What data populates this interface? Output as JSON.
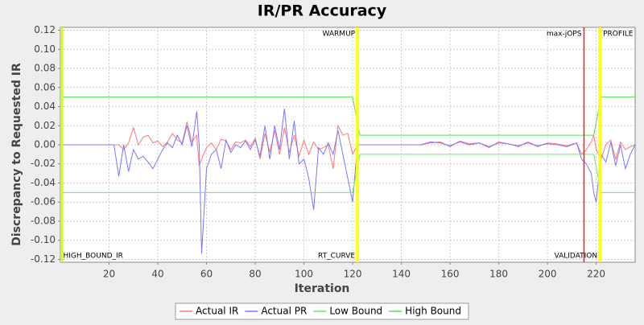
{
  "chart_data": {
    "type": "line",
    "title": "IR/PR Accuracy",
    "x_label": "Iteration",
    "y_label": "Discrepancy to Requested IR",
    "xlim": [
      0,
      236
    ],
    "ylim": [
      -0.123,
      0.123
    ],
    "xticks": [
      20,
      40,
      60,
      80,
      100,
      120,
      140,
      160,
      180,
      200,
      220
    ],
    "yticks": [
      0.12,
      {
        "value": 0.1,
        "label": "0.10"
      },
      0.08,
      0.06,
      0.04,
      0.02,
      {
        "value": 0,
        "label": "0.00"
      },
      -0.02,
      -0.04,
      -0.06,
      -0.08,
      {
        "value": -0.1,
        "label": "-0.10"
      },
      -0.12
    ],
    "grid": true,
    "legend": "bottom",
    "markers": [
      {
        "x": 0.5,
        "color": "#ccff00",
        "bottom_label": "HIGH_BOUND_IR",
        "bottom_anchor": "start"
      },
      {
        "x": 122,
        "color": "#ffff00",
        "top_label": "WARMUP",
        "bottom_label": "RT_CURVE"
      },
      {
        "x": 215,
        "color": "#ff0000",
        "top_label": "max-jOPS"
      },
      {
        "x": 221.5,
        "color": "#ffff00",
        "top_label": "PROFILE",
        "top_anchor": "start",
        "bottom_label": "VALIDATION"
      }
    ],
    "series": [
      {
        "name": "Actual IR",
        "color": "#ff7777",
        "x": [
          1,
          22,
          24,
          26,
          28,
          30,
          32,
          34,
          36,
          38,
          40,
          42,
          44,
          46,
          48,
          50,
          52,
          54,
          56,
          57,
          58,
          60,
          62,
          64,
          66,
          68,
          70,
          72,
          74,
          76,
          78,
          80,
          82,
          84,
          86,
          88,
          90,
          92,
          94,
          96,
          98,
          100,
          102,
          104,
          106,
          108,
          110,
          112,
          114,
          116,
          118,
          120,
          122,
          148,
          152,
          156,
          160,
          164,
          168,
          172,
          176,
          180,
          184,
          188,
          192,
          196,
          200,
          204,
          208,
          212,
          214,
          216,
          218,
          219,
          220,
          222,
          224,
          226,
          228,
          230,
          232,
          234,
          236
        ],
        "values": [
          0,
          0,
          0,
          -0.005,
          0.002,
          0.018,
          0,
          0.008,
          0.01,
          0.002,
          0.004,
          -0.002,
          0.003,
          0.012,
          0.005,
          0.002,
          0.024,
          0.003,
          0.01,
          -0.022,
          -0.015,
          -0.003,
          0.002,
          -0.005,
          0.006,
          0.004,
          -0.005,
          0.003,
          0.002,
          0.005,
          -0.002,
          0.007,
          -0.015,
          0.012,
          -0.008,
          0.015,
          -0.01,
          0.018,
          -0.008,
          0.01,
          -0.012,
          0.005,
          -0.01,
          0.003,
          -0.005,
          -0.003,
          0,
          -0.025,
          0.02,
          0.01,
          0.012,
          -0.01,
          0,
          0,
          0.002,
          0.003,
          -0.002,
          0.004,
          0.001,
          0.002,
          -0.003,
          0.003,
          0.001,
          -0.002,
          0.003,
          -0.002,
          0.002,
          0.001,
          -0.001,
          0.002,
          -0.01,
          -0.005,
          0.003,
          0.01,
          -0.005,
          -0.015,
          0,
          0.005,
          -0.015,
          0.003,
          -0.005,
          -0.002,
          0
        ]
      },
      {
        "name": "Actual PR",
        "color": "#7777ff",
        "x": [
          1,
          22,
          24,
          26,
          28,
          30,
          32,
          34,
          36,
          38,
          40,
          42,
          44,
          46,
          48,
          50,
          52,
          54,
          56,
          57,
          58,
          60,
          62,
          64,
          66,
          68,
          70,
          72,
          74,
          76,
          78,
          80,
          82,
          84,
          86,
          88,
          90,
          92,
          94,
          96,
          98,
          100,
          102,
          104,
          106,
          108,
          110,
          112,
          114,
          116,
          118,
          120,
          122,
          148,
          152,
          156,
          160,
          164,
          168,
          172,
          176,
          180,
          184,
          188,
          192,
          196,
          200,
          204,
          208,
          212,
          214,
          216,
          218,
          219,
          220,
          222,
          224,
          226,
          228,
          230,
          232,
          234,
          236
        ],
        "values": [
          0,
          0,
          -0.033,
          0,
          -0.028,
          -0.005,
          -0.015,
          -0.012,
          -0.018,
          -0.025,
          -0.015,
          -0.005,
          0.002,
          -0.003,
          0.01,
          0,
          0.02,
          -0.002,
          0.035,
          0,
          -0.114,
          -0.025,
          -0.01,
          -0.005,
          -0.025,
          0.005,
          -0.008,
          0,
          -0.003,
          0.004,
          -0.005,
          0.005,
          -0.012,
          0.02,
          -0.015,
          0.02,
          -0.005,
          0.038,
          -0.015,
          0.025,
          -0.02,
          -0.015,
          -0.035,
          -0.068,
          -0.003,
          -0.01,
          0.002,
          -0.01,
          0.015,
          -0.01,
          -0.035,
          -0.06,
          0,
          0,
          0.003,
          0.002,
          -0.001,
          0.003,
          0,
          0.002,
          -0.002,
          0.002,
          0.001,
          -0.001,
          0.002,
          -0.001,
          0.001,
          0,
          -0.002,
          0.002,
          -0.015,
          -0.02,
          -0.03,
          -0.05,
          -0.06,
          -0.01,
          -0.018,
          0.003,
          -0.022,
          0,
          -0.025,
          -0.01,
          0
        ]
      },
      {
        "name": "Low Bound",
        "color": "#66ee66",
        "x": [
          1,
          120,
          123,
          219,
          222,
          236
        ],
        "values": [
          -0.05,
          -0.05,
          -0.01,
          -0.01,
          -0.05,
          -0.05
        ]
      },
      {
        "name": "High Bound",
        "color": "#55dd55",
        "x": [
          1,
          120,
          123,
          219,
          222,
          236
        ],
        "values": [
          0.05,
          0.05,
          0.01,
          0.01,
          0.05,
          0.05
        ]
      }
    ]
  }
}
